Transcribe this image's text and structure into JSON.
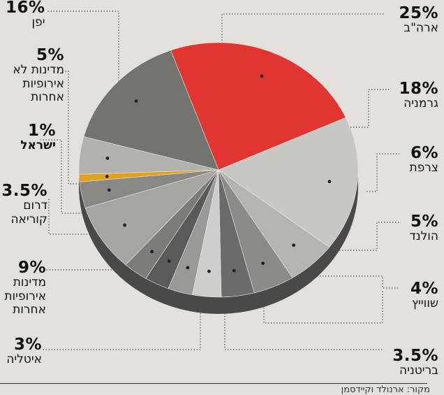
{
  "chart_data": {
    "type": "pie",
    "slices": [
      {
        "label": "ארה\"ב",
        "pct_text": "25%",
        "value": 25,
        "color": "#e03530",
        "label_pos": "top-right"
      },
      {
        "label": "גרמניה",
        "pct_text": "18%",
        "value": 18,
        "color": "#c8c7c3",
        "label_pos": "right"
      },
      {
        "label": "צרפת",
        "pct_text": "6%",
        "value": 6,
        "color": "#b6b4b0",
        "label_pos": "right"
      },
      {
        "label": "הולנד",
        "pct_text": "5%",
        "value": 5,
        "color": "#8d8b88",
        "label_pos": "right"
      },
      {
        "label": "שווייץ",
        "pct_text": "4%",
        "value": 4,
        "color": "#6c6b69",
        "label_pos": "bottom-right"
      },
      {
        "label": "בריטניה",
        "pct_text": "3.5%",
        "value": 3.5,
        "color": "#cfcecb",
        "label_pos": "bottom-right"
      },
      {
        "label": "",
        "pct_text": "",
        "value": 3,
        "color": "#9b9996",
        "label_pos": ""
      },
      {
        "label": "",
        "pct_text": "",
        "value": 3,
        "color": "#5b5a58",
        "label_pos": ""
      },
      {
        "label": "איטליה",
        "pct_text": "3%",
        "value": 3,
        "color": "#7e7c79",
        "label_pos": "bottom-left"
      },
      {
        "label": "מדינות אירופיות אחרות",
        "pct_text": "9%",
        "value": 9,
        "color": "#a7a5a1",
        "label_pos": "left"
      },
      {
        "label": "דרום קוריאה",
        "pct_text": "3.5%",
        "value": 3.5,
        "color": "#8a8885",
        "label_pos": "left"
      },
      {
        "label": "ישראל",
        "pct_text": "1%",
        "value": 1,
        "color": "#e0a21c",
        "label_pos": "left"
      },
      {
        "label": "מדינות לא אירופיות אחרות",
        "pct_text": "5%",
        "value": 5,
        "color": "#b3b1ae",
        "label_pos": "left"
      },
      {
        "label": "יפן",
        "pct_text": "16%",
        "value": 16,
        "color": "#747370",
        "label_pos": "top-left"
      }
    ],
    "source_text": "מקור: ארנולד וקיידסמן"
  },
  "labels": {
    "japan_pct": "16%",
    "japan": "יפן",
    "other_noneu_pct": "5%",
    "other_noneu_l1": "מדינות לא",
    "other_noneu_l2": "אירופיות",
    "other_noneu_l3": "אחרות",
    "israel_pct": "1%",
    "israel": "ישראל",
    "korea_pct": "3.5%",
    "korea_l1": "דרום",
    "korea_l2": "קוריאה",
    "other_eu_pct": "9%",
    "other_eu_l1": "מדינות",
    "other_eu_l2": "אירופיות",
    "other_eu_l3": "אחרות",
    "italy_pct": "3%",
    "italy": "איטליה",
    "usa_pct": "25%",
    "usa": "ארה\"ב",
    "germany_pct": "18%",
    "germany": "גרמניה",
    "france_pct": "6%",
    "france": "צרפת",
    "netherlands_pct": "5%",
    "netherlands": "הולנד",
    "swiss_pct": "4%",
    "swiss": "שווייץ",
    "uk_pct": "3.5%",
    "uk": "בריטניה"
  }
}
